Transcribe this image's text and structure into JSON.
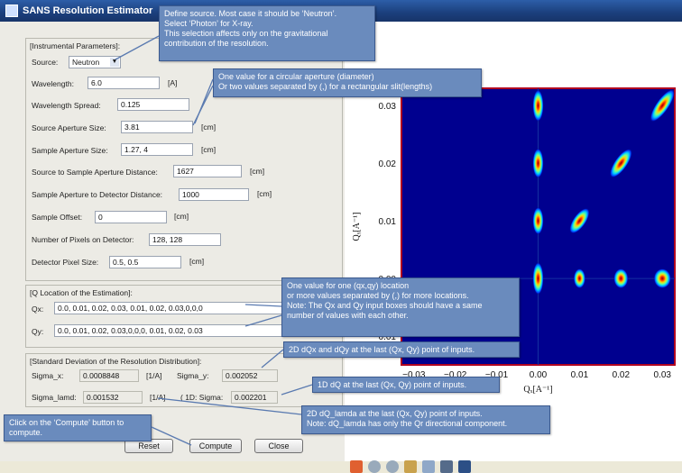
{
  "window": {
    "title": "SANS Resolution Estimator"
  },
  "instrument": {
    "group_label": "[Instrumental Parameters]:",
    "source_label": "Source:",
    "source_value": "Neutron",
    "wavelength_label": "Wavelength:",
    "wavelength_value": "6.0",
    "wavelength_unit": "[A]",
    "spread_label": "Wavelength Spread:",
    "spread_value": "0.125",
    "src_ap_label": "Source Aperture Size:",
    "src_ap_value": "3.81",
    "src_ap_unit": "[cm]",
    "smp_ap_label": "Sample Aperture Size:",
    "smp_ap_value": "1.27, 4",
    "smp_ap_unit": "[cm]",
    "src_smp_label": "Source to Sample Aperture Distance:",
    "src_smp_value": "1627",
    "src_smp_unit": "[cm]",
    "smp_det_label": "Sample Aperture to Detector Distance:",
    "smp_det_value": "1000",
    "smp_det_unit": "[cm]",
    "offset_label": "Sample Offset:",
    "offset_value": "0",
    "offset_unit": "[cm]",
    "npix_label": "Number of Pixels on Detector:",
    "npix_value": "128, 128",
    "pixsize_label": "Detector Pixel Size:",
    "pixsize_value": "0.5, 0.5",
    "pixsize_unit": "[cm]"
  },
  "q_location": {
    "group_label": "[Q Location of the Estimation]:",
    "qx_label": "Qx:",
    "qx_value": "0.0, 0.01, 0.02, 0.03, 0.01, 0.02, 0.03,0,0,0",
    "qy_label": "Qy:",
    "qy_value": "0.0, 0.01, 0.02, 0.03,0,0,0, 0.01, 0.02, 0.03"
  },
  "resolution": {
    "group_label": "[Standard Deviation of the Resolution Distribution]:",
    "sigma_x_label": "Sigma_x:",
    "sigma_x_value": "0.0008848",
    "sigma_x_unit": "[1/A]",
    "sigma_y_label": "Sigma_y:",
    "sigma_y_value": "0.002052",
    "sigma_lamd_label": "Sigma_lamd:",
    "sigma_lamd_value": "0.001532",
    "sigma_lamd_unit": "[1/A]",
    "oned_label": "( 1D:  Sigma:",
    "oned_value": "0.002201"
  },
  "buttons": {
    "reset": "Reset",
    "compute": "Compute",
    "close": "Close"
  },
  "callouts": {
    "source": "Define source. Most case it  should be ‘Neutron’.\nSelect ‘Photon’ for X-ray.\nThis selection affects only on the gravitational\ncontribution of the resolution.",
    "aperture": "One value for a circular aperture (diameter)\nOr two values separated by (,) for a rectangular slit(lengths)",
    "qloc": "One value for one (qx,qy) location\nor more values separated by (,) for more locations.\nNote: The Qx and Qy input boxes should  have a same\nnumber of values  with each other.",
    "dqxy": "2D dQx and dQy at the last  (Qx, Qy) point of inputs.",
    "dq1d": "1D dQ at the last  (Qx, Qy) point of inputs.",
    "dqlam": "2D dQ_lamda at the last  (Qx, Qy) point of inputs.\nNote: dQ_lamda has only the Qr directional component.",
    "compute": "Click on the ‘Compute’ button  to\ncompute."
  },
  "chart_data": {
    "type": "heatmap",
    "xlabel": "Qₓ[A⁻¹]",
    "ylabel": "Qᵧ[A⁻¹]",
    "xlim": [
      -0.033,
      0.033
    ],
    "ylim": [
      -0.015,
      0.033
    ],
    "xticks": [
      "−0.03",
      "−0.02",
      "−0.01",
      "0.00",
      "0.01",
      "0.02",
      "0.03"
    ],
    "yticks": [
      "0.03",
      "0.02",
      "0.01",
      "0.00",
      "−0.01"
    ],
    "points_qx": [
      0.0,
      0.01,
      0.02,
      0.03,
      0.01,
      0.02,
      0.03,
      0,
      0,
      0
    ],
    "points_qy": [
      0.0,
      0.01,
      0.02,
      0.03,
      0,
      0,
      0,
      0.01,
      0.02,
      0.03
    ],
    "colormap": "jet",
    "background_color": "#00008f"
  }
}
